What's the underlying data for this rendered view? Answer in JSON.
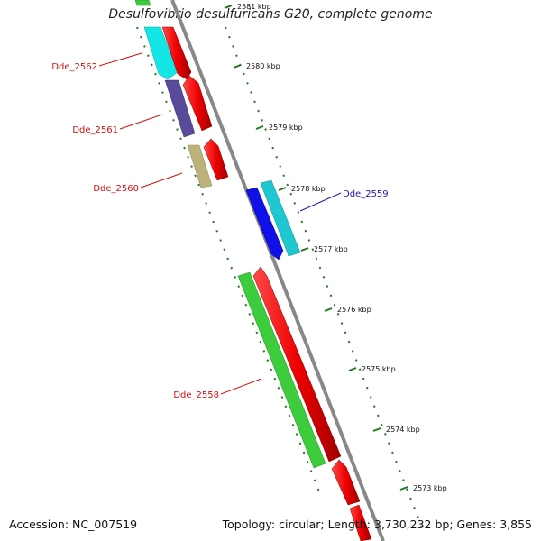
{
  "title": "Desulfovibrio desulfuricans G20, complete genome",
  "footer": {
    "accession": "Accession: NC_007519",
    "topology": "Topology: circular; Length: 3,730,232 bp; Genes: 3,855"
  },
  "colors": {
    "backbone": "#888888",
    "tick": "#1e7a1e",
    "label_red": "#d01010",
    "label_blue": "#1a1aa8"
  },
  "ticks": [
    {
      "label": "2581 kbp"
    },
    {
      "label": "2580 kbp"
    },
    {
      "label": "2579 kbp"
    },
    {
      "label": "2578 kbp"
    },
    {
      "label": "2577 kbp"
    },
    {
      "label": "2576 kbp"
    },
    {
      "label": "2575 kbp"
    },
    {
      "label": "2574 kbp"
    },
    {
      "label": "2573 kbp"
    }
  ],
  "genes": [
    {
      "name": "Dde_2562",
      "color": "#14e6e6"
    },
    {
      "name": "Dde_2561",
      "color": "#5a4a9a"
    },
    {
      "name": "Dde_2560",
      "color": "#bdb37a"
    },
    {
      "name": "Dde_2559",
      "color": "#1010e8"
    },
    {
      "name": "Dde_2558",
      "color": "#3ccc3c"
    }
  ]
}
